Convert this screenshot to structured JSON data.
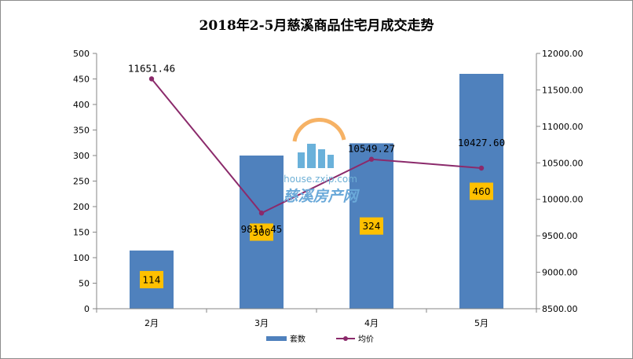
{
  "chart_data": {
    "type": "bar+line",
    "title": "2018年2-5月慈溪商品住宅月成交走势",
    "categories": [
      "2月",
      "3月",
      "4月",
      "5月"
    ],
    "series": [
      {
        "name": "套数",
        "type": "bar",
        "axis": "left",
        "values": [
          114,
          300,
          324,
          460
        ],
        "color": "#4f81bd",
        "label_bg": "#ffc000"
      },
      {
        "name": "均价",
        "type": "line",
        "axis": "right",
        "values": [
          11651.46,
          9811.45,
          10549.27,
          10427.6
        ],
        "labels": [
          "11651.46",
          "9811.45",
          "10549.27",
          "10427.60"
        ],
        "color": "#8b2a6b"
      }
    ],
    "y_left": {
      "min": 0,
      "max": 500,
      "step": 50,
      "ticks": [
        "0",
        "50",
        "100",
        "150",
        "200",
        "250",
        "300",
        "350",
        "400",
        "450",
        "500"
      ]
    },
    "y_right": {
      "min": 8500,
      "max": 12000,
      "step": 500,
      "ticks": [
        "8500.00",
        "9000.00",
        "9500.00",
        "10000.00",
        "10500.00",
        "11000.00",
        "11500.00",
        "12000.00"
      ]
    },
    "grid": false,
    "legend_position": "bottom"
  },
  "watermark": {
    "url": "house.zxip.com",
    "name": "慈溪房产网"
  }
}
